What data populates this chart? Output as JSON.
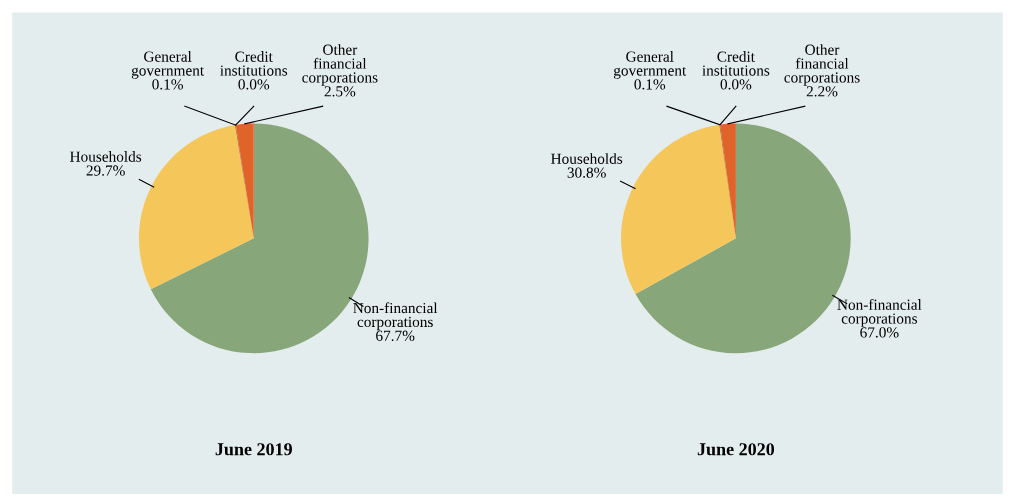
{
  "chart_data": [
    {
      "type": "pie",
      "title": "June 2019",
      "categories": [
        "Non-financial\ncorporations",
        "Households",
        "General\ngovernment",
        "Credit\ninstitutions",
        "Other\nfinancial\ncorporations"
      ],
      "values": [
        67.7,
        29.7,
        0.1,
        0.0,
        2.5
      ],
      "value_labels": [
        "67.7%",
        "29.7%",
        "0.1%",
        "0.0%",
        "2.5%"
      ],
      "colors": [
        "#87a77b",
        "#f5c75a",
        "#b5552b",
        "#7a3a1e",
        "#e0632a"
      ]
    },
    {
      "type": "pie",
      "title": "June 2020",
      "categories": [
        "Non-financial\ncorporations",
        "Households",
        "General\ngovernment",
        "Credit\ninstitutions",
        "Other\nfinancial\ncorporations"
      ],
      "values": [
        67.0,
        30.8,
        0.1,
        0.0,
        2.2
      ],
      "value_labels": [
        "67.0%",
        "30.8%",
        "0.1%",
        "0.0%",
        "2.2%"
      ],
      "colors": [
        "#87a77b",
        "#f5c75a",
        "#b5552b",
        "#7a3a1e",
        "#e0632a"
      ]
    }
  ]
}
